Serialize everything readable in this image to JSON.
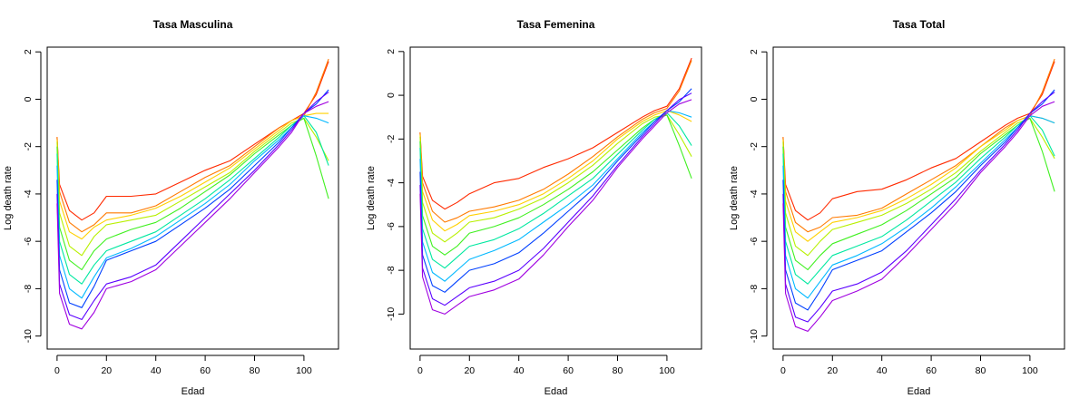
{
  "chart_data": [
    {
      "type": "line",
      "title": "Tasa Masculina",
      "xlabel": "Edad",
      "ylabel": "Log death rate",
      "xlim": [
        -4,
        114
      ],
      "ylim": [
        -10.55,
        2.2
      ],
      "xticks": [
        0,
        20,
        40,
        60,
        80,
        100
      ],
      "yticks": [
        -10,
        -8,
        -6,
        -4,
        -2,
        0,
        2
      ],
      "legend": "none",
      "grid": false,
      "series_encoding": "one line per year, colored by a rainbow palette from red (earliest) to violet (latest)",
      "x": [
        0,
        1,
        5,
        10,
        15,
        20,
        30,
        40,
        50,
        60,
        70,
        80,
        90,
        95,
        100,
        105,
        110
      ],
      "series": [
        {
          "color": "#ff2a00",
          "values": [
            -1.6,
            -3.6,
            -4.7,
            -5.1,
            -4.8,
            -4.1,
            -4.1,
            -4.0,
            -3.5,
            -3.0,
            -2.6,
            -1.9,
            -1.2,
            -0.9,
            -0.6,
            0.2,
            1.6
          ]
        },
        {
          "color": "#ff7a00",
          "values": [
            -1.6,
            -3.9,
            -5.2,
            -5.6,
            -5.3,
            -4.8,
            -4.8,
            -4.5,
            -3.9,
            -3.3,
            -2.8,
            -2.0,
            -1.2,
            -0.9,
            -0.7,
            0.3,
            1.7
          ]
        },
        {
          "color": "#ffd000",
          "values": [
            -1.7,
            -4.3,
            -5.6,
            -5.9,
            -5.4,
            -5.1,
            -4.9,
            -4.6,
            -4.1,
            -3.5,
            -2.9,
            -2.1,
            -1.3,
            -0.9,
            -0.7,
            -0.6,
            -0.6
          ]
        },
        {
          "color": "#b8f000",
          "values": [
            -1.8,
            -4.8,
            -6.2,
            -6.6,
            -5.8,
            -5.3,
            -5.1,
            -4.9,
            -4.3,
            -3.7,
            -3.1,
            -2.2,
            -1.4,
            -1.0,
            -0.8,
            -1.6,
            -2.6
          ]
        },
        {
          "color": "#40f020",
          "values": [
            -2.0,
            -5.4,
            -6.8,
            -7.2,
            -6.4,
            -5.9,
            -5.5,
            -5.2,
            -4.6,
            -3.9,
            -3.2,
            -2.3,
            -1.5,
            -1.1,
            -0.8,
            -2.4,
            -4.2
          ]
        },
        {
          "color": "#00e8a0",
          "values": [
            -2.3,
            -6.0,
            -7.4,
            -7.8,
            -7.0,
            -6.4,
            -6.0,
            -5.6,
            -4.9,
            -4.2,
            -3.4,
            -2.5,
            -1.6,
            -1.1,
            -0.7,
            -1.4,
            -2.8
          ]
        },
        {
          "color": "#00b8ff",
          "values": [
            -2.8,
            -6.6,
            -8.0,
            -8.4,
            -7.5,
            -6.7,
            -6.3,
            -5.8,
            -5.1,
            -4.4,
            -3.6,
            -2.6,
            -1.7,
            -1.2,
            -0.7,
            -0.8,
            -1.0
          ]
        },
        {
          "color": "#0040ff",
          "values": [
            -3.4,
            -7.2,
            -8.6,
            -8.8,
            -7.9,
            -6.8,
            -6.4,
            -6.0,
            -5.3,
            -4.6,
            -3.8,
            -2.8,
            -1.8,
            -1.2,
            -0.6,
            -0.2,
            0.4
          ]
        },
        {
          "color": "#5a00ff",
          "values": [
            -4.0,
            -7.8,
            -9.1,
            -9.3,
            -8.5,
            -7.8,
            -7.5,
            -7.0,
            -6.0,
            -5.0,
            -4.0,
            -3.0,
            -1.9,
            -1.3,
            -0.6,
            -0.1,
            0.3
          ]
        },
        {
          "color": "#a000e0",
          "values": [
            -4.4,
            -8.2,
            -9.5,
            -9.7,
            -9.0,
            -8.0,
            -7.7,
            -7.2,
            -6.2,
            -5.2,
            -4.2,
            -3.1,
            -2.0,
            -1.4,
            -0.6,
            -0.3,
            -0.1
          ]
        }
      ]
    },
    {
      "type": "line",
      "title": "Tasa Femenina",
      "xlabel": "Edad",
      "ylabel": "Log death rate",
      "xlim": [
        -4,
        114
      ],
      "ylim": [
        -11.6,
        2.2
      ],
      "xticks": [
        0,
        20,
        40,
        60,
        80,
        100
      ],
      "yticks": [
        -10,
        -8,
        -6,
        -4,
        -2,
        0,
        2
      ],
      "legend": "none",
      "grid": false,
      "series_encoding": "one line per year, colored by a rainbow palette from red (earliest) to violet (latest)",
      "x": [
        0,
        1,
        5,
        10,
        15,
        20,
        30,
        40,
        50,
        60,
        70,
        80,
        90,
        95,
        100,
        105,
        110
      ],
      "series": [
        {
          "color": "#ff2a00",
          "values": [
            -1.7,
            -3.7,
            -4.8,
            -5.2,
            -4.9,
            -4.5,
            -4.0,
            -3.8,
            -3.3,
            -2.9,
            -2.4,
            -1.7,
            -1.0,
            -0.7,
            -0.5,
            0.3,
            1.7
          ]
        },
        {
          "color": "#ff7a00",
          "values": [
            -1.7,
            -4.0,
            -5.3,
            -5.8,
            -5.6,
            -5.3,
            -5.1,
            -4.8,
            -4.3,
            -3.6,
            -2.8,
            -1.9,
            -1.1,
            -0.8,
            -0.6,
            0.2,
            1.6
          ]
        },
        {
          "color": "#ffd000",
          "values": [
            -1.8,
            -4.4,
            -5.7,
            -6.2,
            -5.9,
            -5.5,
            -5.3,
            -5.0,
            -4.5,
            -3.8,
            -3.0,
            -2.0,
            -1.2,
            -0.9,
            -0.7,
            -0.9,
            -1.2
          ]
        },
        {
          "color": "#b8f000",
          "values": [
            -1.9,
            -4.9,
            -6.3,
            -6.7,
            -6.3,
            -5.8,
            -5.6,
            -5.2,
            -4.7,
            -4.0,
            -3.2,
            -2.2,
            -1.3,
            -1.0,
            -0.9,
            -1.8,
            -2.8
          ]
        },
        {
          "color": "#40f020",
          "values": [
            -2.1,
            -5.5,
            -6.9,
            -7.3,
            -6.9,
            -6.3,
            -6.0,
            -5.6,
            -5.0,
            -4.3,
            -3.5,
            -2.5,
            -1.5,
            -1.1,
            -0.9,
            -2.3,
            -3.8
          ]
        },
        {
          "color": "#00e8a0",
          "values": [
            -2.4,
            -6.1,
            -7.5,
            -7.9,
            -7.4,
            -6.9,
            -6.6,
            -6.1,
            -5.4,
            -4.6,
            -3.8,
            -2.7,
            -1.6,
            -1.1,
            -0.8,
            -1.4,
            -2.3
          ]
        },
        {
          "color": "#00b8ff",
          "values": [
            -2.9,
            -6.7,
            -8.1,
            -8.5,
            -8.0,
            -7.5,
            -7.1,
            -6.6,
            -5.8,
            -5.0,
            -4.1,
            -2.9,
            -1.7,
            -1.2,
            -0.7,
            -0.8,
            -1.0
          ]
        },
        {
          "color": "#0040ff",
          "values": [
            -3.5,
            -7.3,
            -8.7,
            -9.0,
            -8.5,
            -8.0,
            -7.7,
            -7.2,
            -6.3,
            -5.3,
            -4.3,
            -3.0,
            -1.8,
            -1.2,
            -0.7,
            -0.3,
            0.3
          ]
        },
        {
          "color": "#5a00ff",
          "values": [
            -4.1,
            -7.9,
            -9.3,
            -9.6,
            -9.2,
            -8.8,
            -8.5,
            -8.0,
            -7.0,
            -5.8,
            -4.6,
            -3.2,
            -1.9,
            -1.3,
            -0.7,
            -0.2,
            0.1
          ]
        },
        {
          "color": "#a000e0",
          "values": [
            -4.5,
            -8.3,
            -9.8,
            -10.0,
            -9.6,
            -9.2,
            -8.9,
            -8.4,
            -7.3,
            -6.0,
            -4.8,
            -3.3,
            -2.0,
            -1.4,
            -0.8,
            -0.4,
            -0.2
          ]
        }
      ]
    },
    {
      "type": "line",
      "title": "Tasa Total",
      "xlabel": "Edad",
      "ylabel": "Log death rate",
      "xlim": [
        -4,
        114
      ],
      "ylim": [
        -10.55,
        2.2
      ],
      "xticks": [
        0,
        20,
        40,
        60,
        80,
        100
      ],
      "yticks": [
        -10,
        -8,
        -6,
        -4,
        -2,
        0,
        2
      ],
      "legend": "none",
      "grid": false,
      "series_encoding": "one line per year, colored by a rainbow palette from red (earliest) to violet (latest)",
      "x": [
        0,
        1,
        5,
        10,
        15,
        20,
        30,
        40,
        50,
        60,
        70,
        80,
        90,
        95,
        100,
        105,
        110
      ],
      "series": [
        {
          "color": "#ff2a00",
          "values": [
            -1.6,
            -3.6,
            -4.7,
            -5.1,
            -4.8,
            -4.2,
            -3.9,
            -3.8,
            -3.4,
            -2.9,
            -2.5,
            -1.8,
            -1.1,
            -0.8,
            -0.6,
            0.2,
            1.6
          ]
        },
        {
          "color": "#ff7a00",
          "values": [
            -1.6,
            -3.9,
            -5.2,
            -5.6,
            -5.4,
            -5.0,
            -4.9,
            -4.6,
            -4.0,
            -3.4,
            -2.8,
            -2.0,
            -1.2,
            -0.9,
            -0.7,
            0.3,
            1.7
          ]
        },
        {
          "color": "#ffd000",
          "values": [
            -1.7,
            -4.3,
            -5.6,
            -6.0,
            -5.6,
            -5.2,
            -5.0,
            -4.7,
            -4.2,
            -3.6,
            -2.9,
            -2.0,
            -1.3,
            -0.9,
            -0.7,
            -0.8,
            -1.0
          ]
        },
        {
          "color": "#b8f000",
          "values": [
            -1.8,
            -4.8,
            -6.2,
            -6.6,
            -6.0,
            -5.5,
            -5.2,
            -4.9,
            -4.4,
            -3.8,
            -3.1,
            -2.2,
            -1.4,
            -1.0,
            -0.8,
            -1.6,
            -2.5
          ]
        },
        {
          "color": "#40f020",
          "values": [
            -2.0,
            -5.4,
            -6.8,
            -7.2,
            -6.6,
            -6.1,
            -5.7,
            -5.3,
            -4.7,
            -4.0,
            -3.3,
            -2.3,
            -1.5,
            -1.1,
            -0.8,
            -2.2,
            -3.9
          ]
        },
        {
          "color": "#00e8a0",
          "values": [
            -2.3,
            -6.0,
            -7.4,
            -7.8,
            -7.2,
            -6.6,
            -6.2,
            -5.8,
            -5.1,
            -4.3,
            -3.5,
            -2.5,
            -1.6,
            -1.1,
            -0.7,
            -1.3,
            -2.4
          ]
        },
        {
          "color": "#00b8ff",
          "values": [
            -2.8,
            -6.6,
            -8.0,
            -8.4,
            -7.7,
            -7.0,
            -6.6,
            -6.1,
            -5.4,
            -4.6,
            -3.7,
            -2.7,
            -1.7,
            -1.2,
            -0.7,
            -0.8,
            -1.0
          ]
        },
        {
          "color": "#0040ff",
          "values": [
            -3.4,
            -7.2,
            -8.6,
            -8.9,
            -8.1,
            -7.2,
            -6.8,
            -6.4,
            -5.6,
            -4.8,
            -3.9,
            -2.8,
            -1.8,
            -1.2,
            -0.6,
            -0.2,
            0.4
          ]
        },
        {
          "color": "#5a00ff",
          "values": [
            -4.0,
            -7.8,
            -9.2,
            -9.4,
            -8.8,
            -8.1,
            -7.8,
            -7.3,
            -6.4,
            -5.3,
            -4.2,
            -3.0,
            -1.9,
            -1.3,
            -0.6,
            -0.1,
            0.3
          ]
        },
        {
          "color": "#a000e0",
          "values": [
            -4.4,
            -8.2,
            -9.6,
            -9.8,
            -9.2,
            -8.5,
            -8.1,
            -7.6,
            -6.6,
            -5.5,
            -4.4,
            -3.1,
            -2.0,
            -1.4,
            -0.7,
            -0.3,
            -0.1
          ]
        }
      ]
    }
  ]
}
